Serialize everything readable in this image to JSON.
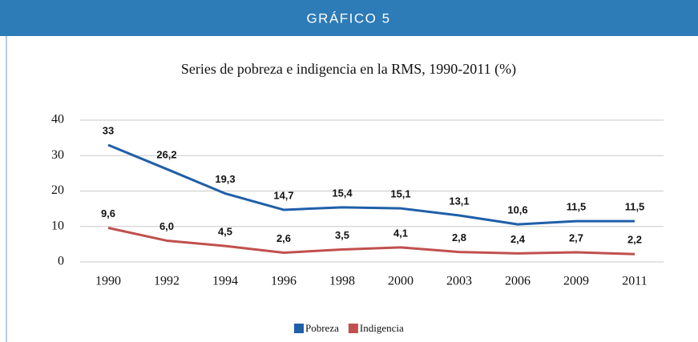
{
  "header": {
    "title": "GRÁFICO 5"
  },
  "chart_data": {
    "type": "line",
    "title": "Series de pobreza e indigencia en la RMS, 1990-2011 (%)",
    "categories": [
      "1990",
      "1992",
      "1994",
      "1996",
      "1998",
      "2000",
      "2003",
      "2006",
      "2009",
      "2011"
    ],
    "series": [
      {
        "name": "Pobreza",
        "color": "#1f5fa8",
        "values": [
          33,
          26.2,
          19.3,
          14.7,
          15.4,
          15.1,
          13.1,
          10.6,
          11.5,
          11.5
        ],
        "value_labels": [
          "33",
          "26,2",
          "19,3",
          "14,7",
          "15,4",
          "15,1",
          "13,1",
          "10,6",
          "11,5",
          "11,5"
        ]
      },
      {
        "name": "Indigencia",
        "color": "#c0504d",
        "values": [
          9.6,
          6.0,
          4.5,
          2.6,
          3.5,
          4.1,
          2.8,
          2.4,
          2.7,
          2.2
        ],
        "value_labels": [
          "9,6",
          "6,0",
          "4,5",
          "2,6",
          "3,5",
          "4,1",
          "2,8",
          "2,4",
          "2,7",
          "2,2"
        ]
      }
    ],
    "ylim": [
      0,
      40
    ],
    "yticks": [
      0,
      10,
      20,
      30,
      40
    ],
    "grid": true,
    "legend": "bottom"
  }
}
